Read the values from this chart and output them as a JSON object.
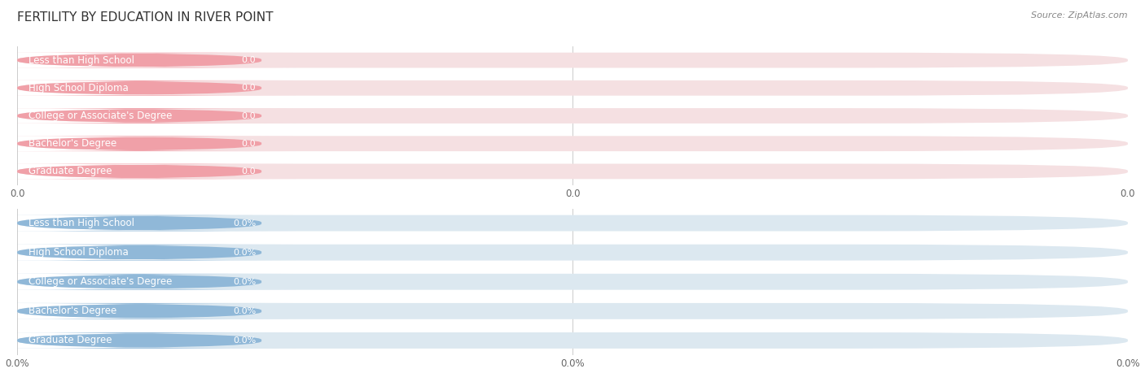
{
  "title": "FERTILITY BY EDUCATION IN RIVER POINT",
  "source": "Source: ZipAtlas.com",
  "categories": [
    "Less than High School",
    "High School Diploma",
    "College or Associate's Degree",
    "Bachelor's Degree",
    "Graduate Degree"
  ],
  "top_values": [
    0.0,
    0.0,
    0.0,
    0.0,
    0.0
  ],
  "bottom_values": [
    0.0,
    0.0,
    0.0,
    0.0,
    0.0
  ],
  "top_bar_color": "#f0a0a8",
  "top_bg_color": "#f5e0e2",
  "bottom_bar_color": "#90b8d8",
  "bottom_bg_color": "#dce8f0",
  "top_xtick_labels": [
    "0.0",
    "0.0",
    "0.0"
  ],
  "bottom_xtick_labels": [
    "0.0%",
    "0.0%",
    "0.0%"
  ],
  "bg_color": "#ffffff",
  "title_fontsize": 11,
  "label_fontsize": 8.5,
  "value_fontsize": 8,
  "tick_fontsize": 8.5,
  "source_fontsize": 8
}
